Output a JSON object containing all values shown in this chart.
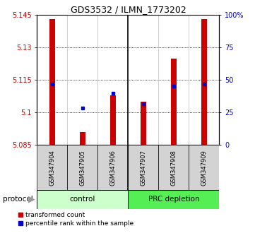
{
  "title": "GDS3532 / ILMN_1773202",
  "categories": [
    "GSM347904",
    "GSM347905",
    "GSM347906",
    "GSM347907",
    "GSM347908",
    "GSM347909"
  ],
  "group_labels": [
    "control",
    "PRC depletion"
  ],
  "ylim_left": [
    5.085,
    5.145
  ],
  "ylim_right": [
    0,
    100
  ],
  "yticks_left": [
    5.085,
    5.1,
    5.115,
    5.13,
    5.145
  ],
  "yticks_right": [
    0,
    25,
    50,
    75,
    100
  ],
  "ytick_labels_right": [
    "0",
    "25",
    "50",
    "75",
    "100%"
  ],
  "red_values": [
    5.143,
    5.091,
    5.108,
    5.105,
    5.125,
    5.143
  ],
  "blue_values_y": [
    5.113,
    5.102,
    5.109,
    5.104,
    5.112,
    5.113
  ],
  "bar_bottom": 5.085,
  "bar_width": 0.18,
  "red_color": "#cc0000",
  "blue_color": "#0000cc",
  "label_bg": "#d3d3d3",
  "control_bg": "#ccffcc",
  "prc_bg": "#55ee55",
  "legend_red_label": "transformed count",
  "legend_blue_label": "percentile rank within the sample",
  "protocol_label": "protocol"
}
